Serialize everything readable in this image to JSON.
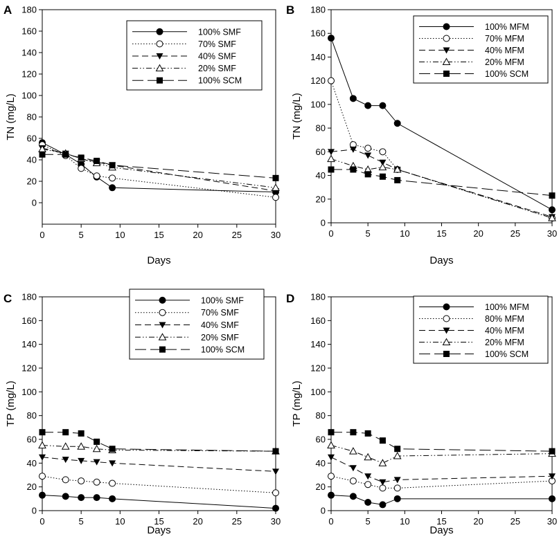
{
  "figure": {
    "background": "#ffffff",
    "ink": "#000000"
  },
  "chart_data": [
    {
      "panel": "A",
      "type": "line",
      "xlabel": "Days",
      "ylabel": "TN (mg/L)",
      "xlim": [
        0,
        30
      ],
      "ylim": [
        -20,
        180
      ],
      "xticks": [
        0,
        5,
        10,
        15,
        20,
        25,
        30
      ],
      "yticks": [
        0,
        20,
        40,
        60,
        80,
        100,
        120,
        140,
        160,
        180
      ],
      "legend_position": "top-right",
      "series": [
        {
          "name": "100% SMF",
          "marker": "circle-filled",
          "line": "solid",
          "x": [
            0,
            3,
            5,
            7,
            9,
            30
          ],
          "values": [
            56,
            45,
            36,
            24,
            14,
            10
          ]
        },
        {
          "name": "70% SMF",
          "marker": "circle-open",
          "line": "dotted",
          "x": [
            0,
            3,
            5,
            7,
            9,
            30
          ],
          "values": [
            54,
            44,
            32,
            25,
            23,
            5
          ]
        },
        {
          "name": "40% SMF",
          "marker": "triangle-down-filled",
          "line": "dashed",
          "x": [
            0,
            3,
            5,
            7,
            9,
            30
          ],
          "values": [
            51,
            46,
            41,
            38,
            35,
            11
          ]
        },
        {
          "name": "20% SMF",
          "marker": "triangle-up-open",
          "line": "dashdotdot",
          "x": [
            0,
            3,
            5,
            7,
            9,
            30
          ],
          "values": [
            50,
            46,
            41,
            37,
            33,
            14
          ]
        },
        {
          "name": "100% SCM",
          "marker": "square-filled",
          "line": "longdash",
          "x": [
            0,
            3,
            5,
            7,
            9,
            30
          ],
          "values": [
            45,
            45,
            42,
            39,
            35,
            23
          ]
        }
      ]
    },
    {
      "panel": "B",
      "type": "line",
      "xlabel": "Days",
      "ylabel": "TN (mg/L)",
      "xlim": [
        0,
        30
      ],
      "ylim": [
        0,
        180
      ],
      "xticks": [
        0,
        5,
        10,
        15,
        20,
        25,
        30
      ],
      "yticks": [
        0,
        20,
        40,
        60,
        80,
        100,
        120,
        140,
        160,
        180
      ],
      "legend_position": "top-right",
      "series": [
        {
          "name": "100% MFM",
          "marker": "circle-filled",
          "line": "solid",
          "x": [
            0,
            3,
            5,
            7,
            9,
            30
          ],
          "values": [
            156,
            105,
            99,
            99,
            84,
            11
          ]
        },
        {
          "name": "70% MFM",
          "marker": "circle-open",
          "line": "dotted",
          "x": [
            0,
            3,
            5,
            7,
            9,
            30
          ],
          "values": [
            120,
            66,
            63,
            60,
            45,
            4
          ]
        },
        {
          "name": "40% MFM",
          "marker": "triangle-down-filled",
          "line": "dashed",
          "x": [
            0,
            3,
            5,
            7,
            9,
            30
          ],
          "values": [
            60,
            62,
            57,
            51,
            45,
            5
          ]
        },
        {
          "name": "20% MFM",
          "marker": "triangle-up-open",
          "line": "dashdotdot",
          "x": [
            0,
            3,
            5,
            7,
            9,
            30
          ],
          "values": [
            54,
            48,
            45,
            47,
            45,
            4
          ]
        },
        {
          "name": "100% SCM",
          "marker": "square-filled",
          "line": "longdash",
          "x": [
            0,
            3,
            5,
            7,
            9,
            30
          ],
          "values": [
            45,
            45,
            41,
            39,
            36,
            23
          ]
        }
      ]
    },
    {
      "panel": "C",
      "type": "line",
      "xlabel": "Days",
      "ylabel": "TP (mg/L)",
      "xlim": [
        0,
        30
      ],
      "ylim": [
        0,
        180
      ],
      "xticks": [
        0,
        5,
        10,
        15,
        20,
        25,
        30
      ],
      "yticks": [
        0,
        20,
        40,
        60,
        80,
        100,
        120,
        140,
        160,
        180
      ],
      "legend_position": "top-right",
      "series": [
        {
          "name": "100% SMF",
          "marker": "circle-filled",
          "line": "solid",
          "x": [
            0,
            3,
            5,
            7,
            9,
            30
          ],
          "values": [
            13,
            12,
            11,
            11,
            10,
            2
          ]
        },
        {
          "name": "70% SMF",
          "marker": "circle-open",
          "line": "dotted",
          "x": [
            0,
            3,
            5,
            7,
            9,
            30
          ],
          "values": [
            29,
            26,
            25,
            24,
            23,
            15
          ]
        },
        {
          "name": "40% SMF",
          "marker": "triangle-down-filled",
          "line": "dashed",
          "x": [
            0,
            3,
            5,
            7,
            9,
            30
          ],
          "values": [
            45,
            43,
            42,
            41,
            40,
            33
          ]
        },
        {
          "name": "20% SMF",
          "marker": "triangle-up-open",
          "line": "dashdotdot",
          "x": [
            0,
            3,
            5,
            7,
            9,
            30
          ],
          "values": [
            55,
            54,
            54,
            52,
            51,
            50
          ]
        },
        {
          "name": "100% SCM",
          "marker": "square-filled",
          "line": "longdash",
          "x": [
            0,
            3,
            5,
            7,
            9,
            30
          ],
          "values": [
            66,
            66,
            65,
            58,
            52,
            50
          ]
        }
      ]
    },
    {
      "panel": "D",
      "type": "line",
      "xlabel": "Days",
      "ylabel": "TP (mg/L)",
      "xlim": [
        0,
        30
      ],
      "ylim": [
        0,
        180
      ],
      "xticks": [
        0,
        5,
        10,
        15,
        20,
        25,
        30
      ],
      "yticks": [
        0,
        20,
        40,
        60,
        80,
        100,
        120,
        140,
        160,
        180
      ],
      "legend_position": "top-right",
      "series": [
        {
          "name": "100% MFM",
          "marker": "circle-filled",
          "line": "solid",
          "x": [
            0,
            3,
            5,
            7,
            9,
            30
          ],
          "values": [
            13,
            12,
            7,
            5,
            10,
            10
          ]
        },
        {
          "name": "80% MFM",
          "marker": "circle-open",
          "line": "dotted",
          "x": [
            0,
            3,
            5,
            7,
            9,
            30
          ],
          "values": [
            29,
            25,
            22,
            19,
            19,
            25
          ]
        },
        {
          "name": "40% MFM",
          "marker": "triangle-down-filled",
          "line": "dashed",
          "x": [
            0,
            3,
            5,
            7,
            9,
            30
          ],
          "values": [
            45,
            36,
            29,
            24,
            26,
            29
          ]
        },
        {
          "name": "20% MFM",
          "marker": "triangle-up-open",
          "line": "dashdotdot",
          "x": [
            0,
            3,
            5,
            7,
            9,
            30
          ],
          "values": [
            55,
            50,
            45,
            40,
            46,
            48
          ]
        },
        {
          "name": "100% SCM",
          "marker": "square-filled",
          "line": "longdash",
          "x": [
            0,
            3,
            5,
            7,
            9,
            30
          ],
          "values": [
            66,
            66,
            65,
            59,
            52,
            50
          ]
        }
      ]
    }
  ]
}
